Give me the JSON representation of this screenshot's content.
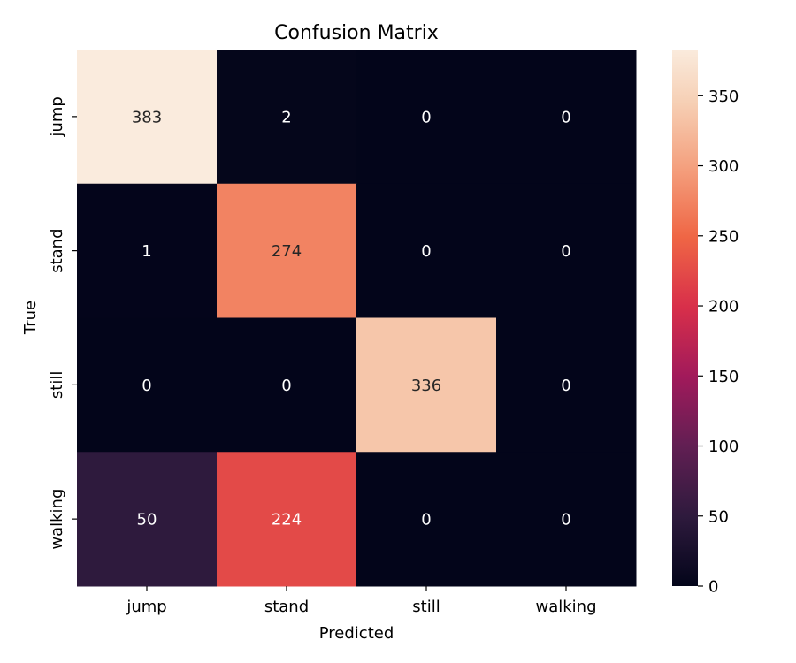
{
  "chart_data": {
    "type": "heatmap",
    "title": "Confusion Matrix",
    "xlabel": "Predicted",
    "ylabel": "True",
    "x_categories": [
      "jump",
      "stand",
      "still",
      "walking"
    ],
    "y_categories": [
      "jump",
      "stand",
      "still",
      "walking"
    ],
    "values": [
      [
        383,
        2,
        0,
        0
      ],
      [
        1,
        274,
        0,
        0
      ],
      [
        0,
        0,
        336,
        0
      ],
      [
        50,
        224,
        0,
        0
      ]
    ],
    "colorbar": {
      "min": 0,
      "max": 383,
      "ticks": [
        0,
        50,
        100,
        150,
        200,
        250,
        300,
        350
      ],
      "colormap": "rocket"
    },
    "grid": false
  }
}
